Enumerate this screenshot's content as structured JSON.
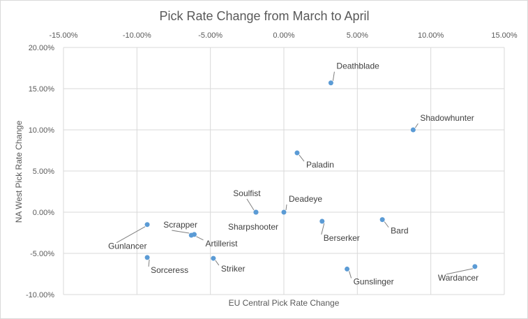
{
  "chart_data": {
    "type": "scatter",
    "title": "Pick Rate Change from March to April",
    "xlabel": "EU Central Pick Rate Change",
    "ylabel": "NA West Pick Rate Change",
    "xlim": [
      -0.15,
      0.15
    ],
    "ylim": [
      -0.1,
      0.2
    ],
    "x_ticks": [
      "-15.00%",
      "-10.00%",
      "-5.00%",
      "0.00%",
      "5.00%",
      "10.00%",
      "15.00%"
    ],
    "y_ticks": [
      "20.00%",
      "15.00%",
      "10.00%",
      "5.00%",
      "0.00%",
      "-5.00%",
      "-10.00%"
    ],
    "x_tick_values": [
      -0.15,
      -0.1,
      -0.05,
      0,
      0.05,
      0.1,
      0.15
    ],
    "y_tick_values": [
      0.2,
      0.15,
      0.1,
      0.05,
      0,
      -0.05,
      -0.1
    ],
    "grid": true,
    "marker_color": "#5b9bd5",
    "points": [
      {
        "name": "Deathblade",
        "x": 0.032,
        "y": 0.157
      },
      {
        "name": "Shadowhunter",
        "x": 0.088,
        "y": 0.1
      },
      {
        "name": "Paladin",
        "x": 0.009,
        "y": 0.072
      },
      {
        "name": "Soulfist",
        "x": -0.019,
        "y": 0.0
      },
      {
        "name": "Sharpshooter",
        "x": -0.019,
        "y": 0.0
      },
      {
        "name": "Deadeye",
        "x": 0.0,
        "y": 0.0
      },
      {
        "name": "Berserker",
        "x": 0.026,
        "y": -0.011
      },
      {
        "name": "Bard",
        "x": 0.067,
        "y": -0.009
      },
      {
        "name": "Gunlancer",
        "x": -0.093,
        "y": -0.015
      },
      {
        "name": "Scrapper",
        "x": -0.063,
        "y": -0.028
      },
      {
        "name": "Artillerist",
        "x": -0.061,
        "y": -0.027
      },
      {
        "name": "Sorceress",
        "x": -0.093,
        "y": -0.055
      },
      {
        "name": "Striker",
        "x": -0.048,
        "y": -0.056
      },
      {
        "name": "Gunslinger",
        "x": 0.043,
        "y": -0.069
      },
      {
        "name": "Wardancer",
        "x": 0.13,
        "y": -0.066
      }
    ]
  }
}
